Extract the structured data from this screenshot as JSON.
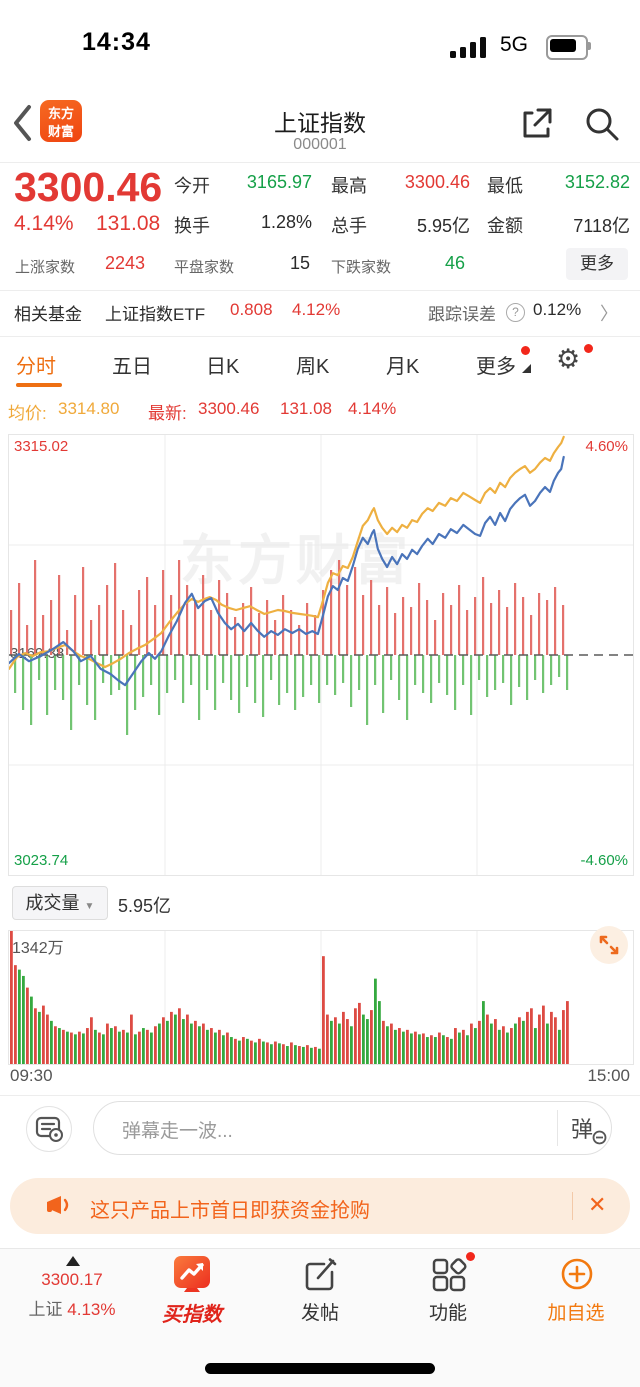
{
  "colors": {
    "red": "#e23934",
    "green": "#15a048",
    "orange": "#f2641c",
    "tab_orange": "#ee6f12",
    "amber_line": "#eeb041",
    "blue_line": "#4a74ba",
    "bar_red": "#e4716c",
    "bar_green": "#72c472",
    "vol_red": "#dd4b43",
    "vol_green": "#35a93f"
  },
  "status_bar": {
    "time": "14:34",
    "network": "5G"
  },
  "header": {
    "title": "上证指数",
    "code": "000001",
    "logo_line1": "东方",
    "logo_line2": "财富"
  },
  "quote": {
    "price": "3300.46",
    "change_pct": "4.14%",
    "change_val": "131.08",
    "stats": [
      {
        "label": "今开",
        "value": "3165.97",
        "color": "green"
      },
      {
        "label": "最高",
        "value": "3300.46",
        "color": "red"
      },
      {
        "label": "最低",
        "value": "3152.82",
        "color": "green"
      },
      {
        "label": "换手",
        "value": "1.28%",
        "color": "dark"
      },
      {
        "label": "总手",
        "value": "5.95亿",
        "color": "dark"
      },
      {
        "label": "金额",
        "value": "7118亿",
        "color": "dark"
      }
    ],
    "breadth": [
      {
        "label": "上涨家数",
        "value": "2243",
        "color": "red"
      },
      {
        "label": "平盘家数",
        "value": "15",
        "color": "dark"
      },
      {
        "label": "下跌家数",
        "value": "46",
        "color": "green"
      }
    ],
    "more_label": "更多"
  },
  "fund_row": {
    "label": "相关基金",
    "name": "上证指数ETF",
    "price": "0.808",
    "pct": "4.12%",
    "right_label": "跟踪误差",
    "right_value": "0.12%",
    "chevron": "〉"
  },
  "tabs": {
    "items": [
      "分时",
      "五日",
      "日K",
      "周K",
      "月K",
      "更多"
    ],
    "active": "分时"
  },
  "legend": {
    "avg_label": "均价:",
    "avg": "3314.80",
    "last_label": "最新:",
    "last": "3300.46",
    "chg": "131.08",
    "pct": "4.14%"
  },
  "volume_panel": {
    "selector": "成交量",
    "dropdown": "▼",
    "value": "5.95亿",
    "max_label": "1342万",
    "x_start": "09:30",
    "x_end": "15:00"
  },
  "comment": {
    "placeholder": "弹幕走一波...",
    "send": "弹"
  },
  "banner": {
    "text": "这只产品上市首日即获资金抢购",
    "close": "✕"
  },
  "bottom_nav": {
    "index_price": "3300.17",
    "index_name": "上证",
    "index_pct": "4.13%",
    "buy": "买指数",
    "post": "发帖",
    "features": "功能",
    "add": "加自选"
  },
  "chart_data": {
    "type": "line",
    "title": "上证指数 分时图",
    "y_max_label": "3315.02",
    "y_min_label": "3023.74",
    "y_mid_label": "3169.38",
    "pct_max_label": "4.60%",
    "pct_min_label": "-4.60%",
    "pct_range": 4.6,
    "x_start": "09:30",
    "x_end": "15:00",
    "session_fraction_complete": 0.889,
    "series": [
      {
        "name": "均价",
        "values": [
          [
            0,
            -0.29
          ],
          [
            0.013,
            -0.04
          ],
          [
            0.026,
            0.04
          ],
          [
            0.038,
            -0.02
          ],
          [
            0.051,
            0.06
          ],
          [
            0.064,
            0.08
          ],
          [
            0.077,
            0.15
          ],
          [
            0.09,
            0.21
          ],
          [
            0.103,
            0.08
          ],
          [
            0.115,
            -0.02
          ],
          [
            0.128,
            -0.08
          ],
          [
            0.141,
            -0.17
          ],
          [
            0.154,
            -0.25
          ],
          [
            0.167,
            -0.17
          ],
          [
            0.179,
            -0.08
          ],
          [
            0.192,
            0.04
          ],
          [
            0.205,
            0.13
          ],
          [
            0.218,
            0.21
          ],
          [
            0.231,
            0.33
          ],
          [
            0.244,
            0.46
          ],
          [
            0.256,
            0.67
          ],
          [
            0.269,
            0.88
          ],
          [
            0.282,
            1.07
          ],
          [
            0.293,
            1.17
          ],
          [
            0.303,
            1.11
          ],
          [
            0.313,
            1.17
          ],
          [
            0.322,
            1.21
          ],
          [
            0.332,
            1.15
          ],
          [
            0.341,
            1.05
          ],
          [
            0.353,
            0.98
          ],
          [
            0.364,
            0.94
          ],
          [
            0.375,
            0.98
          ],
          [
            0.386,
            1.02
          ],
          [
            0.397,
            0.94
          ],
          [
            0.409,
            0.86
          ],
          [
            0.42,
            0.9
          ],
          [
            0.431,
            0.94
          ],
          [
            0.442,
            0.92
          ],
          [
            0.454,
            0.88
          ],
          [
            0.465,
            0.86
          ],
          [
            0.476,
            0.84
          ],
          [
            0.486,
            0.82
          ],
          [
            0.495,
            0.79
          ],
          [
            0.503,
            1.13
          ],
          [
            0.511,
            1.51
          ],
          [
            0.519,
            1.71
          ],
          [
            0.527,
            1.67
          ],
          [
            0.535,
            1.86
          ],
          [
            0.543,
            1.82
          ],
          [
            0.551,
            2.05
          ],
          [
            0.559,
            2.38
          ],
          [
            0.567,
            2.7
          ],
          [
            0.575,
            2.82
          ],
          [
            0.582,
            3.01
          ],
          [
            0.585,
            3.07
          ],
          [
            0.591,
            2.82
          ],
          [
            0.598,
            2.66
          ],
          [
            0.606,
            2.53
          ],
          [
            0.614,
            2.66
          ],
          [
            0.622,
            2.57
          ],
          [
            0.63,
            2.72
          ],
          [
            0.638,
            2.66
          ],
          [
            0.646,
            2.82
          ],
          [
            0.654,
            2.78
          ],
          [
            0.662,
            2.95
          ],
          [
            0.671,
            3.07
          ],
          [
            0.679,
            3.01
          ],
          [
            0.689,
            3.18
          ],
          [
            0.699,
            3.12
          ],
          [
            0.708,
            3.28
          ],
          [
            0.718,
            3.22
          ],
          [
            0.728,
            3.39
          ],
          [
            0.737,
            3.32
          ],
          [
            0.747,
            3.24
          ],
          [
            0.755,
            3.18
          ],
          [
            0.763,
            3.39
          ],
          [
            0.771,
            3.49
          ],
          [
            0.779,
            3.39
          ],
          [
            0.787,
            3.6
          ],
          [
            0.795,
            3.51
          ],
          [
            0.803,
            3.7
          ],
          [
            0.811,
            3.81
          ],
          [
            0.819,
            3.89
          ],
          [
            0.827,
            3.95
          ],
          [
            0.835,
            3.81
          ],
          [
            0.843,
            3.89
          ],
          [
            0.851,
            4.02
          ],
          [
            0.859,
            4.12
          ],
          [
            0.867,
            4.06
          ],
          [
            0.873,
            4.22
          ],
          [
            0.88,
            4.35
          ],
          [
            0.885,
            4.43
          ],
          [
            0.889,
            4.56
          ]
        ],
        "final": "3314.80"
      },
      {
        "name": "最新",
        "values": [
          [
            0,
            -0.17
          ],
          [
            0.016,
            0.02
          ],
          [
            0.032,
            -0.13
          ],
          [
            0.051,
            -0.02
          ],
          [
            0.071,
            0.13
          ],
          [
            0.087,
            0.27
          ],
          [
            0.103,
            0.08
          ],
          [
            0.115,
            -0.13
          ],
          [
            0.131,
            -0.02
          ],
          [
            0.147,
            -0.29
          ],
          [
            0.163,
            -0.4
          ],
          [
            0.176,
            -0.54
          ],
          [
            0.186,
            -0.63
          ],
          [
            0.199,
            -0.38
          ],
          [
            0.212,
            -0.13
          ],
          [
            0.224,
            0.04
          ],
          [
            0.234,
            -0.08
          ],
          [
            0.244,
            0.08
          ],
          [
            0.256,
            0.4
          ],
          [
            0.269,
            0.71
          ],
          [
            0.282,
            1.09
          ],
          [
            0.293,
            1.28
          ],
          [
            0.303,
            0.98
          ],
          [
            0.314,
            1.13
          ],
          [
            0.324,
            1.19
          ],
          [
            0.335,
            0.88
          ],
          [
            0.346,
            0.67
          ],
          [
            0.356,
            0.54
          ],
          [
            0.367,
            0.65
          ],
          [
            0.377,
            0.5
          ],
          [
            0.388,
            0.67
          ],
          [
            0.399,
            0.5
          ],
          [
            0.409,
            0.38
          ],
          [
            0.42,
            0.5
          ],
          [
            0.431,
            0.42
          ],
          [
            0.442,
            0.54
          ],
          [
            0.454,
            0.46
          ],
          [
            0.465,
            0.54
          ],
          [
            0.476,
            0.44
          ],
          [
            0.486,
            0.5
          ],
          [
            0.495,
            0.44
          ],
          [
            0.503,
            0.82
          ],
          [
            0.511,
            1.23
          ],
          [
            0.519,
            1.44
          ],
          [
            0.527,
            1.36
          ],
          [
            0.535,
            1.61
          ],
          [
            0.543,
            1.55
          ],
          [
            0.551,
            1.86
          ],
          [
            0.559,
            2.22
          ],
          [
            0.567,
            2.45
          ],
          [
            0.575,
            2.32
          ],
          [
            0.582,
            2.55
          ],
          [
            0.585,
            2.61
          ],
          [
            0.591,
            2.22
          ],
          [
            0.598,
            2.01
          ],
          [
            0.606,
            1.84
          ],
          [
            0.614,
            2.05
          ],
          [
            0.622,
            1.9
          ],
          [
            0.63,
            2.11
          ],
          [
            0.638,
            2.01
          ],
          [
            0.646,
            2.2
          ],
          [
            0.654,
            2.11
          ],
          [
            0.662,
            2.28
          ],
          [
            0.671,
            2.43
          ],
          [
            0.679,
            2.32
          ],
          [
            0.689,
            2.53
          ],
          [
            0.699,
            2.45
          ],
          [
            0.708,
            2.63
          ],
          [
            0.718,
            2.55
          ],
          [
            0.728,
            2.72
          ],
          [
            0.737,
            2.63
          ],
          [
            0.747,
            2.53
          ],
          [
            0.755,
            2.49
          ],
          [
            0.763,
            2.76
          ],
          [
            0.771,
            2.89
          ],
          [
            0.779,
            2.72
          ],
          [
            0.787,
            2.97
          ],
          [
            0.795,
            2.8
          ],
          [
            0.803,
            3.05
          ],
          [
            0.811,
            3.18
          ],
          [
            0.819,
            3.28
          ],
          [
            0.827,
            3.35
          ],
          [
            0.835,
            3.12
          ],
          [
            0.843,
            3.22
          ],
          [
            0.851,
            3.39
          ],
          [
            0.859,
            3.51
          ],
          [
            0.867,
            3.41
          ],
          [
            0.873,
            3.64
          ],
          [
            0.88,
            3.81
          ],
          [
            0.885,
            3.89
          ],
          [
            0.889,
            4.14
          ]
        ],
        "final": "3300.46"
      }
    ],
    "minute_bars": [
      45,
      -38,
      72,
      -55,
      30,
      -70,
      95,
      -25,
      40,
      -60,
      55,
      -35,
      80,
      -45,
      25,
      -75,
      60,
      -30,
      88,
      -50,
      35,
      -65,
      50,
      -28,
      70,
      -40,
      92,
      -35,
      45,
      -80,
      30,
      -55,
      65,
      -42,
      78,
      -30,
      50,
      -60,
      85,
      -38,
      60,
      -25,
      95,
      -48,
      70,
      -30,
      55,
      -65,
      80,
      -35,
      45,
      -55,
      75,
      -28,
      62,
      -45,
      38,
      -58,
      52,
      -32,
      68,
      -48,
      42,
      -62,
      55,
      -25,
      35,
      -50,
      60,
      -38,
      45,
      -55,
      30,
      -42,
      52,
      -30,
      40,
      -48,
      65,
      -30,
      85,
      -40,
      95,
      -28,
      70,
      -52,
      88,
      -35,
      60,
      -70,
      75,
      -30,
      50,
      -58,
      68,
      -25,
      42,
      -45,
      58,
      -65,
      48,
      -30,
      72,
      -38,
      55,
      -48,
      35,
      -28,
      62,
      -40,
      50,
      -55,
      70,
      -30,
      45,
      -60,
      58,
      -25,
      78,
      -42,
      52,
      -35,
      65,
      -28,
      48,
      -50,
      72,
      -32,
      58,
      -45,
      40,
      -25,
      62,
      -38,
      55,
      -30,
      68,
      -22,
      50,
      -35
    ],
    "volume_bars": [
      148,
      110,
      -105,
      -98,
      85,
      -75,
      62,
      -58,
      65,
      55,
      -48,
      42,
      -40,
      38,
      -36,
      35,
      -33,
      36,
      -34,
      40,
      52,
      -38,
      35,
      -33,
      45,
      -40,
      42,
      -36,
      38,
      -35,
      55,
      -33,
      36,
      -40,
      38,
      -35,
      42,
      -45,
      52,
      -48,
      58,
      -55,
      62,
      -50,
      55,
      -45,
      48,
      -42,
      45,
      -38,
      40,
      -35,
      38,
      -32,
      35,
      -30,
      28,
      -26,
      30,
      -28,
      26,
      -24,
      28,
      -25,
      24,
      -22,
      25,
      -23,
      22,
      -20,
      24,
      -21,
      20,
      -19,
      21,
      -18,
      19,
      -17,
      120,
      55,
      -48,
      52,
      -45,
      58,
      50,
      -42,
      62,
      68,
      -55,
      -50,
      60,
      -95,
      -70,
      48,
      -42,
      45,
      -38,
      40,
      -36,
      38,
      -34,
      36,
      -33,
      34,
      -30,
      32,
      -30,
      35,
      -32,
      30,
      -28,
      40,
      -35,
      38,
      -32,
      45,
      -40,
      48,
      -70,
      55,
      -45,
      50,
      -38,
      42,
      -35,
      40,
      -45,
      52,
      -48,
      58,
      62,
      -40,
      55,
      65,
      -45,
      58,
      52,
      -38,
      60,
      70
    ],
    "watermark": "东方财富"
  }
}
